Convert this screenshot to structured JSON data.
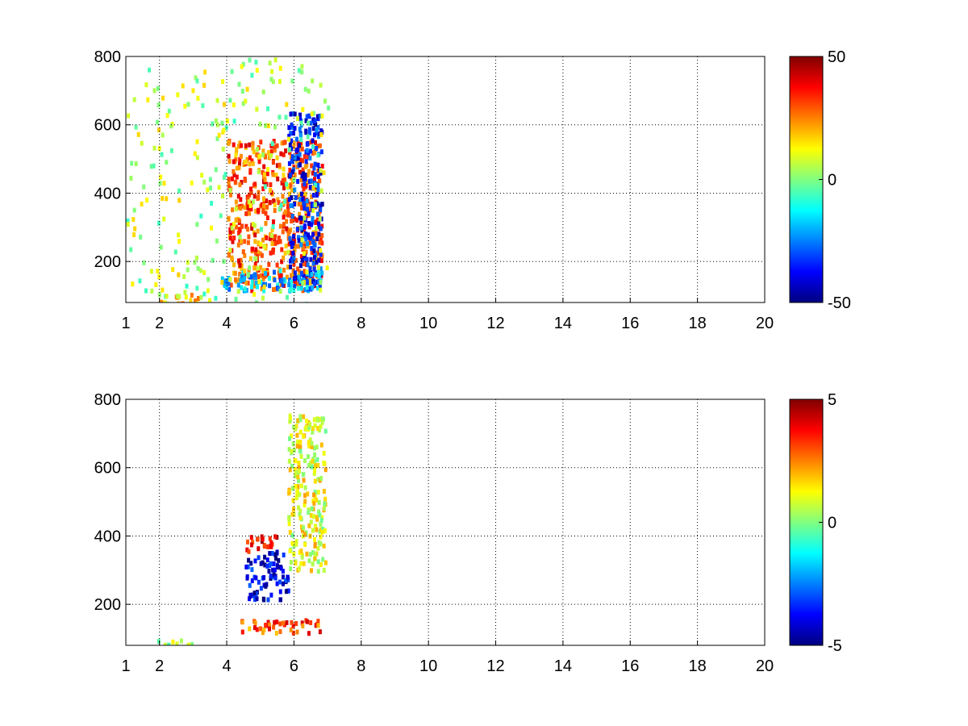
{
  "chart_data": [
    {
      "type": "heatmap",
      "title": "",
      "xlabel": "",
      "ylabel": "",
      "xlim": [
        1,
        20
      ],
      "ylim": [
        80,
        800
      ],
      "xticks": [
        1,
        2,
        4,
        6,
        8,
        10,
        12,
        14,
        16,
        18,
        20
      ],
      "xtick_labels": [
        "1",
        "2",
        "4",
        "6",
        "8",
        "10",
        "12",
        "14",
        "16",
        "18",
        "20"
      ],
      "yticks": [
        200,
        400,
        600,
        800
      ],
      "ytick_labels": [
        "200",
        "400",
        "600",
        "800"
      ],
      "grid": true,
      "colormap": "jet",
      "clim": [
        -50,
        50
      ],
      "colorbar_ticks": [
        50,
        0,
        -50
      ],
      "colorbar_labels": [
        "50",
        "0",
        "-50"
      ],
      "features": [
        {
          "x": [
            4.0,
            6.8
          ],
          "y": [
            120,
            560
          ],
          "value": 30
        },
        {
          "x": [
            5.8,
            6.8
          ],
          "y": [
            140,
            640
          ],
          "value": -35
        },
        {
          "x": [
            2.0,
            3.5
          ],
          "y": [
            80,
            110
          ],
          "value": 15
        },
        {
          "x": [
            3.6,
            6.8
          ],
          "y": [
            120,
            180
          ],
          "value": -20
        },
        {
          "x": [
            1.0,
            7.0
          ],
          "y": [
            80,
            800
          ],
          "value": 5
        }
      ]
    },
    {
      "type": "heatmap",
      "title": "",
      "xlabel": "",
      "ylabel": "",
      "xlim": [
        1,
        20
      ],
      "ylim": [
        80,
        800
      ],
      "xticks": [
        1,
        2,
        4,
        6,
        8,
        10,
        12,
        14,
        16,
        18,
        20
      ],
      "xtick_labels": [
        "1",
        "2",
        "4",
        "6",
        "8",
        "10",
        "12",
        "14",
        "16",
        "18",
        "20"
      ],
      "yticks": [
        200,
        400,
        600,
        800
      ],
      "ytick_labels": [
        "200",
        "400",
        "600",
        "800"
      ],
      "grid": true,
      "colormap": "jet",
      "clim": [
        -5,
        5
      ],
      "colorbar_ticks": [
        5,
        0,
        -5
      ],
      "colorbar_labels": [
        "5",
        "0",
        "-5"
      ],
      "features": [
        {
          "x": [
            4.5,
            5.8
          ],
          "y": [
            220,
            360
          ],
          "value": -4
        },
        {
          "x": [
            4.3,
            6.8
          ],
          "y": [
            120,
            160
          ],
          "value": 3
        },
        {
          "x": [
            4.5,
            5.5
          ],
          "y": [
            360,
            410
          ],
          "value": 4
        },
        {
          "x": [
            5.8,
            6.9
          ],
          "y": [
            300,
            760
          ],
          "value": 1
        },
        {
          "x": [
            1.9,
            3.0
          ],
          "y": [
            80,
            100
          ],
          "value": 0.5
        }
      ]
    }
  ]
}
